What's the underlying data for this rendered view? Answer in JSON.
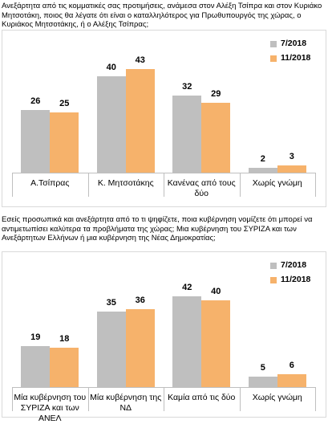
{
  "chart_data": [
    {
      "type": "bar",
      "title": "Ανεξάρτητα από τις κομματικές σας προτιμήσεις, ανάμεσα στον Αλέξη Τσίπρα και στον Κυριάκο Μητσοτάκη, ποιος θα λέγατε ότι είναι ο καταλληλότερος για Πρωθυπουργός της χώρας, ο Κυριάκος Μητσοτάκης, ή ο Αλέξης Τσίπρας;",
      "categories": [
        "Α.Τσίπρας",
        "Κ. Μητσοτάκης",
        "Κανένας από τους δύο",
        "Χωρίς γνώμη"
      ],
      "series": [
        {
          "name": "7/2018",
          "color": "#bfbfbf",
          "values": [
            26,
            40,
            32,
            2
          ]
        },
        {
          "name": "11/2018",
          "color": "#f6b26b",
          "values": [
            25,
            43,
            29,
            3
          ]
        }
      ],
      "legend": "top-right"
    },
    {
      "type": "bar",
      "title": "Εσείς προσωπικά και ανεξάρτητα από το τι ψηφίζετε, ποια κυβέρνηση νομίζετε ότι μπορεί να αντιμετωπίσει καλύτερα τα προβλήματα της χώρας; Μια κυβέρνηση του ΣΥΡΙΖΑ και των Ανεξάρτητων Ελλήνων ή μια κυβέρνηση της Νέας Δημοκρατίας;",
      "categories": [
        "Μία κυβέρνηση του ΣΥΡΙΖΑ και των ΑΝΕΛ",
        "Μία κυβέρνηση της ΝΔ",
        "Καμία από τις δύο",
        "Χωρίς γνώμη"
      ],
      "series": [
        {
          "name": "7/2018",
          "color": "#bfbfbf",
          "values": [
            19,
            35,
            42,
            5
          ]
        },
        {
          "name": "11/2018",
          "color": "#f6b26b",
          "values": [
            18,
            36,
            40,
            6
          ]
        }
      ],
      "legend": "top-right"
    }
  ]
}
